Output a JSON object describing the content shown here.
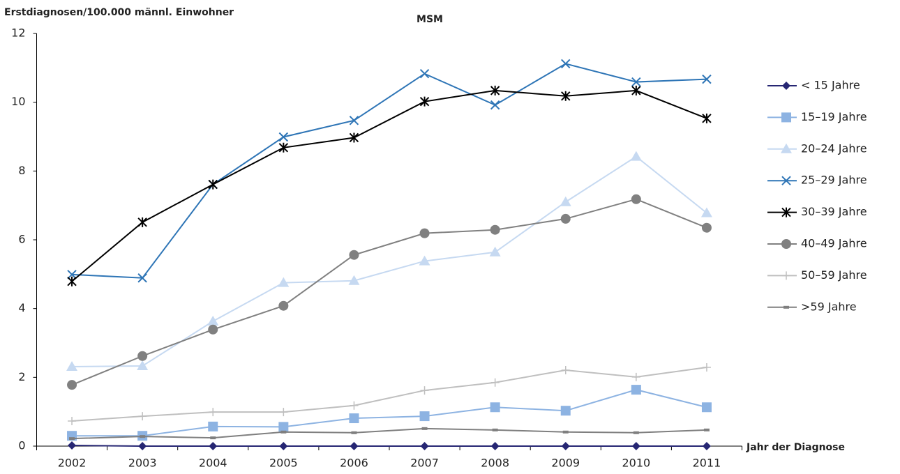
{
  "chart_data": {
    "type": "line",
    "title": "MSM",
    "y_label": "Erstdiagnosen/100.000 männl. Einwohner",
    "x_label": "Jahr der Diagnose",
    "categories": [
      "2002",
      "2003",
      "2004",
      "2005",
      "2006",
      "2007",
      "2008",
      "2009",
      "2010",
      "2011"
    ],
    "ylim": [
      0,
      12
    ],
    "yticks": [
      0,
      2,
      4,
      6,
      8,
      10,
      12
    ],
    "grid": false,
    "legend": "right",
    "series": [
      {
        "name": "< 15 Jahre",
        "color": "#262673",
        "marker": "diamond",
        "values": [
          0.02,
          0,
          0,
          0,
          0,
          0,
          0,
          0,
          0,
          0
        ]
      },
      {
        "name": "15–19 Jahre",
        "color": "#8db3e2",
        "marker": "square",
        "values": [
          0.3,
          0.3,
          0.57,
          0.56,
          0.81,
          0.87,
          1.13,
          1.03,
          1.64,
          1.13
        ]
      },
      {
        "name": "20–24 Jahre",
        "color": "#c6d9f1",
        "marker": "triangle",
        "values": [
          2.31,
          2.33,
          3.63,
          4.75,
          4.81,
          5.38,
          5.64,
          7.1,
          8.42,
          6.78
        ]
      },
      {
        "name": "25–29 Jahre",
        "color": "#2e75b6",
        "marker": "x",
        "values": [
          4.99,
          4.89,
          7.61,
          8.99,
          9.47,
          10.83,
          9.92,
          11.12,
          10.59,
          10.67
        ]
      },
      {
        "name": "30–39 Jahre",
        "color": "#000000",
        "marker": "star",
        "values": [
          4.79,
          6.51,
          7.61,
          8.68,
          8.97,
          10.02,
          10.34,
          10.18,
          10.34,
          9.53
        ]
      },
      {
        "name": "40–49 Jahre",
        "color": "#808080",
        "marker": "circle",
        "values": [
          1.78,
          2.62,
          3.39,
          4.08,
          5.56,
          6.19,
          6.29,
          6.61,
          7.18,
          6.35
        ]
      },
      {
        "name": "50–59 Jahre",
        "color": "#bfbfbf",
        "marker": "plus",
        "values": [
          0.73,
          0.87,
          0.99,
          0.99,
          1.18,
          1.62,
          1.85,
          2.21,
          2.01,
          2.29
        ]
      },
      {
        "name": ">59 Jahre",
        "color": "#7f7f7f",
        "marker": "dash",
        "values": [
          0.22,
          0.28,
          0.24,
          0.41,
          0.39,
          0.51,
          0.47,
          0.41,
          0.39,
          0.47
        ]
      }
    ]
  }
}
